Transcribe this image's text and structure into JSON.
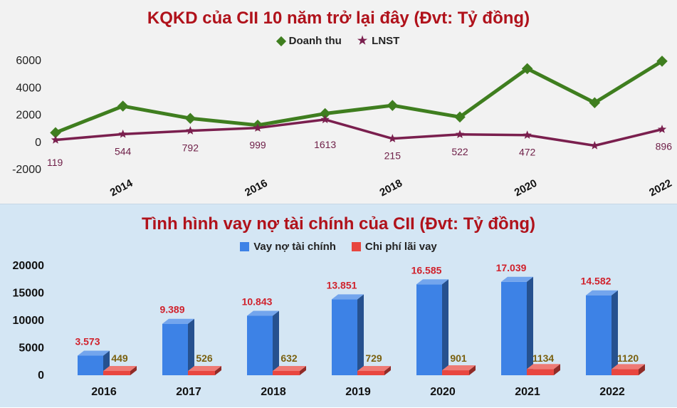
{
  "chart_data": [
    {
      "type": "line",
      "title": "KQKD của CII 10 năm trở lại đây (Đvt: Tỷ đồng)",
      "x": [
        2013,
        2014,
        2015,
        2016,
        2017,
        2018,
        2019,
        2020,
        2021,
        2022
      ],
      "x_tick_labels": [
        "2014",
        "2016",
        "2018",
        "2020",
        "2022"
      ],
      "y_ticks": [
        "6000",
        "4000",
        "2000",
        "0",
        "-2000"
      ],
      "ylim": [
        -2000,
        6000
      ],
      "legend_position": "top-center",
      "grid": false,
      "series": [
        {
          "name": "Doanh thu",
          "color": "#3f7e1f",
          "marker": "diamond",
          "values": [
            650,
            2600,
            1700,
            1200,
            2050,
            2650,
            1800,
            5350,
            2850,
            5900
          ]
        },
        {
          "name": "LNST",
          "color": "#7a1f4e",
          "marker": "star",
          "values": [
            119,
            544,
            792,
            999,
            1613,
            215,
            522,
            472,
            -300,
            896
          ],
          "data_labels": [
            "119",
            "544",
            "792",
            "999",
            "1613",
            "215",
            "522",
            "472",
            "",
            "896"
          ]
        }
      ]
    },
    {
      "type": "bar",
      "title": "Tình hình vay nợ tài chính của CII (Đvt: Tỷ đồng)",
      "categories": [
        "2016",
        "2017",
        "2018",
        "2019",
        "2020",
        "2021",
        "2022"
      ],
      "y_ticks": [
        "20000",
        "15000",
        "10000",
        "5000",
        "0"
      ],
      "ylim": [
        0,
        20000
      ],
      "legend_position": "top-center",
      "grid": false,
      "series": [
        {
          "name": "Vay nợ tài chính",
          "color": "#3d82e6",
          "values": [
            3573,
            9389,
            10843,
            13851,
            16585,
            17039,
            14582
          ],
          "data_labels": [
            "3.573",
            "9.389",
            "10.843",
            "13.851",
            "16.585",
            "17.039",
            "14.582"
          ]
        },
        {
          "name": "Chi phí lãi vay",
          "color": "#e8463f",
          "values": [
            449,
            526,
            632,
            729,
            901,
            1134,
            1120
          ],
          "data_labels": [
            "449",
            "526",
            "632",
            "729",
            "901",
            "1134",
            "1120"
          ]
        }
      ]
    }
  ]
}
